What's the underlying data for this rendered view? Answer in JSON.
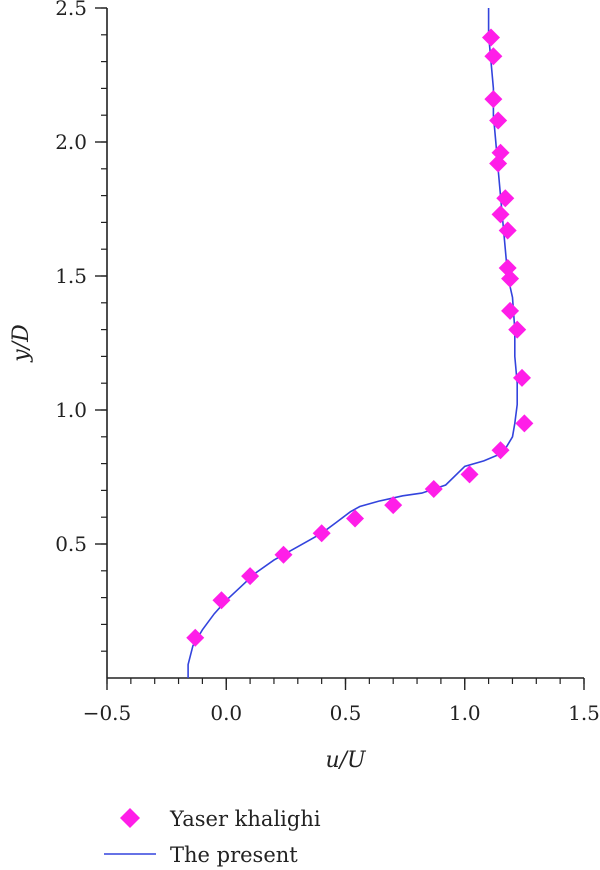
{
  "chart_data": {
    "type": "scatter",
    "xlabel": "u/U",
    "ylabel": "y/D",
    "xlim": [
      -0.5,
      1.5
    ],
    "ylim": [
      0.0,
      2.5
    ],
    "x_ticks": [
      -0.5,
      0.0,
      0.5,
      1.0,
      1.5
    ],
    "x_tick_labels": [
      "−0.5",
      "0.0",
      "0.5",
      "1.0",
      "1.5"
    ],
    "x_minor_step": 0.1,
    "y_ticks": [
      0.5,
      1.0,
      1.5,
      2.0,
      2.5
    ],
    "y_tick_labels": [
      "0.5",
      "1.0",
      "1.5",
      "2.0",
      "2.5"
    ],
    "y_minor_step": 0.1,
    "grid": false,
    "legend_position": "bottom-left, below plot",
    "series": [
      {
        "name": "Yaser khalighi",
        "kind": "markers",
        "marker": "diamond",
        "color": "#ff1ee8",
        "points": [
          [
            -0.13,
            0.15
          ],
          [
            -0.02,
            0.29
          ],
          [
            0.1,
            0.38
          ],
          [
            0.24,
            0.46
          ],
          [
            0.4,
            0.54
          ],
          [
            0.54,
            0.595
          ],
          [
            0.7,
            0.645
          ],
          [
            0.87,
            0.705
          ],
          [
            1.02,
            0.76
          ],
          [
            1.15,
            0.85
          ],
          [
            1.25,
            0.95
          ],
          [
            1.24,
            1.12
          ],
          [
            1.22,
            1.3
          ],
          [
            1.19,
            1.37
          ],
          [
            1.19,
            1.49
          ],
          [
            1.18,
            1.53
          ],
          [
            1.18,
            1.67
          ],
          [
            1.17,
            1.79
          ],
          [
            1.15,
            1.73
          ],
          [
            1.15,
            1.96
          ],
          [
            1.14,
            1.92
          ],
          [
            1.14,
            2.08
          ],
          [
            1.12,
            2.16
          ],
          [
            1.12,
            2.32
          ],
          [
            1.11,
            2.39
          ]
        ]
      },
      {
        "name": "The present",
        "kind": "line",
        "color": "#3344dd",
        "points": [
          [
            -0.16,
            0.0
          ],
          [
            -0.16,
            0.05
          ],
          [
            -0.14,
            0.12
          ],
          [
            -0.1,
            0.18
          ],
          [
            -0.05,
            0.24
          ],
          [
            0.0,
            0.29
          ],
          [
            0.06,
            0.34
          ],
          [
            0.12,
            0.39
          ],
          [
            0.2,
            0.44
          ],
          [
            0.3,
            0.49
          ],
          [
            0.4,
            0.54
          ],
          [
            0.46,
            0.58
          ],
          [
            0.52,
            0.62
          ],
          [
            0.56,
            0.64
          ],
          [
            0.64,
            0.66
          ],
          [
            0.74,
            0.68
          ],
          [
            0.82,
            0.69
          ],
          [
            0.92,
            0.72
          ],
          [
            1.0,
            0.79
          ],
          [
            1.08,
            0.81
          ],
          [
            1.16,
            0.84
          ],
          [
            1.18,
            0.87
          ],
          [
            1.2,
            0.9
          ],
          [
            1.21,
            0.95
          ],
          [
            1.22,
            1.02
          ],
          [
            1.22,
            1.1
          ],
          [
            1.21,
            1.2
          ],
          [
            1.21,
            1.3
          ],
          [
            1.2,
            1.42
          ],
          [
            1.18,
            1.5
          ],
          [
            1.17,
            1.6
          ],
          [
            1.16,
            1.7
          ],
          [
            1.15,
            1.8
          ],
          [
            1.14,
            1.9
          ],
          [
            1.13,
            2.0
          ],
          [
            1.12,
            2.1
          ],
          [
            1.12,
            2.2
          ],
          [
            1.11,
            2.3
          ],
          [
            1.1,
            2.4
          ],
          [
            1.1,
            2.5
          ]
        ]
      }
    ]
  }
}
